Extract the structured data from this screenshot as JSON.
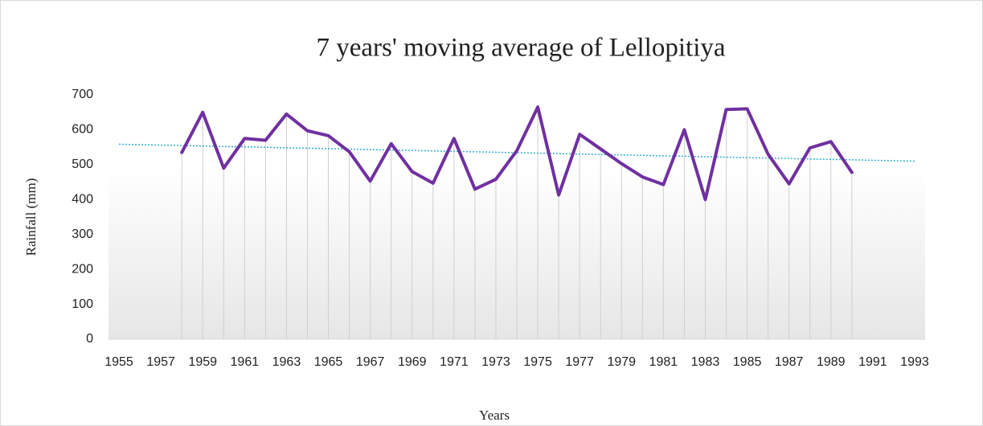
{
  "chart_data": {
    "type": "line",
    "title": "7 years' moving average of  Lellopitiya",
    "x_label": "Years",
    "y_label": "Rainfall (mm)",
    "categories": [
      1955,
      null,
      1957,
      null,
      1959,
      null,
      1961,
      null,
      1963,
      null,
      1965,
      null,
      1967,
      null,
      1969,
      null,
      1971,
      null,
      1973,
      null,
      1975,
      null,
      1977,
      null,
      1979,
      null,
      1981,
      null,
      1983,
      null,
      1985,
      null,
      1987,
      null,
      1989,
      null,
      1991,
      null,
      1993
    ],
    "values": [
      null,
      null,
      null,
      535,
      650,
      490,
      575,
      570,
      645,
      597,
      583,
      537,
      453,
      560,
      480,
      447,
      575,
      430,
      458,
      540,
      665,
      413,
      587,
      545,
      503,
      465,
      443,
      600,
      400,
      658,
      660,
      530,
      445,
      548,
      566,
      478,
      null,
      null,
      null
    ],
    "color": "#7030a0",
    "trendline": true,
    "trendline_color": "#2eaed6",
    "drop_lines": true,
    "ylim": [
      0,
      700
    ],
    "yticks": [
      0,
      100,
      200,
      300,
      400,
      500,
      600,
      700
    ]
  }
}
